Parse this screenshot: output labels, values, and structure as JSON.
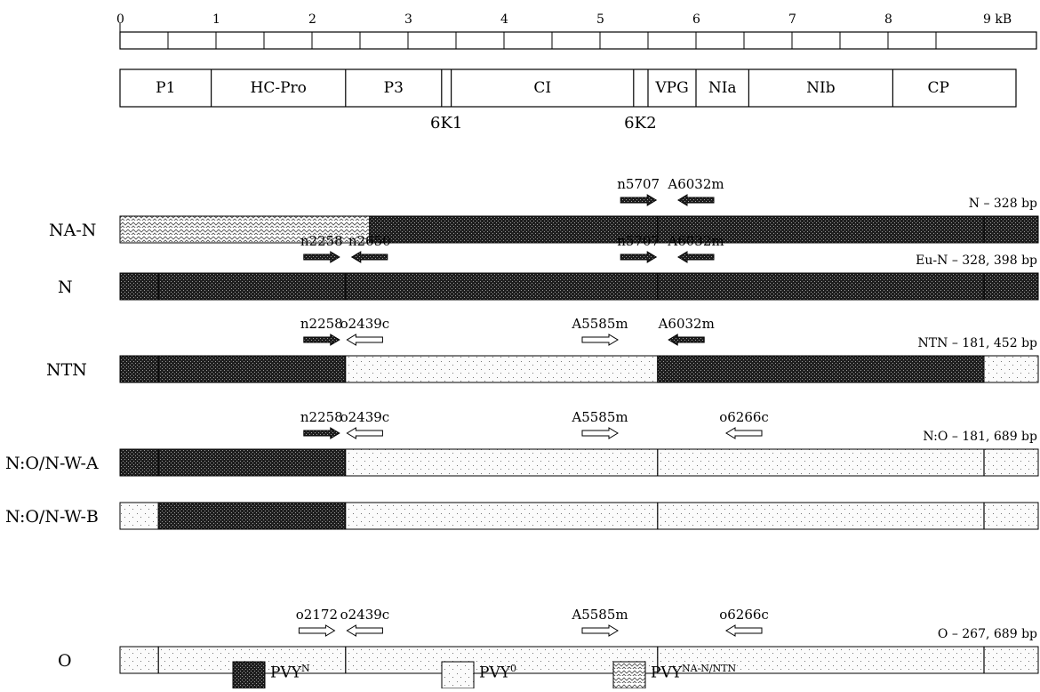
{
  "scale": {
    "ticks": [
      "0",
      "1",
      "2",
      "3",
      "4",
      "5",
      "6",
      "7",
      "8",
      "9 kB"
    ]
  },
  "genome_map": {
    "genes": [
      {
        "label": "P1",
        "start": 0,
        "end": 0.95
      },
      {
        "label": "HC-Pro",
        "start": 0.95,
        "end": 2.35
      },
      {
        "label": "P3",
        "start": 2.35,
        "end": 3.35
      },
      {
        "label": "6K1",
        "start": 3.35,
        "end": 3.45
      },
      {
        "label": "CI",
        "start": 3.45,
        "end": 5.35
      },
      {
        "label": "6K2",
        "start": 5.35,
        "end": 5.5
      },
      {
        "label": "VPG",
        "start": 5.5,
        "end": 6.0
      },
      {
        "label": "NIa",
        "start": 6.0,
        "end": 6.55
      },
      {
        "label": "NIb",
        "start": 6.55,
        "end": 8.05
      },
      {
        "label": "CP",
        "start": 8.05,
        "end": 9.0
      }
    ],
    "small_labels": [
      "6K1",
      "6K2"
    ]
  },
  "strains": [
    {
      "name": "NA-N",
      "product_label": "N – 328 bp",
      "segments": [
        {
          "type": "nantn",
          "start": 0,
          "end": 2.6
        },
        {
          "type": "N",
          "start": 2.6,
          "end": 9.5
        }
      ],
      "dividers": [
        5.6,
        9.0
      ],
      "primers": [
        {
          "name": "n5707",
          "pos": 5.4,
          "dir": "right",
          "type": "N"
        },
        {
          "name": "A6032m",
          "pos": 6.0,
          "dir": "left",
          "type": "N"
        }
      ]
    },
    {
      "name": "N",
      "product_label": "Eu-N – 328, 398 bp",
      "segments": [
        {
          "type": "N",
          "start": 0,
          "end": 9.5
        }
      ],
      "dividers": [
        0.4,
        2.35,
        5.6,
        9.0
      ],
      "primers": [
        {
          "name": "n2258",
          "pos": 2.1,
          "dir": "right",
          "type": "N"
        },
        {
          "name": "n2650",
          "pos": 2.6,
          "dir": "left",
          "type": "N"
        },
        {
          "name": "n5707",
          "pos": 5.4,
          "dir": "right",
          "type": "N"
        },
        {
          "name": "A6032m",
          "pos": 6.0,
          "dir": "left",
          "type": "N"
        }
      ]
    },
    {
      "name": "NTN",
      "product_label": "NTN – 181, 452 bp",
      "segments": [
        {
          "type": "N",
          "start": 0,
          "end": 2.35
        },
        {
          "type": "O",
          "start": 2.35,
          "end": 5.6
        },
        {
          "type": "N",
          "start": 5.6,
          "end": 9.0
        },
        {
          "type": "O",
          "start": 9.0,
          "end": 9.5
        }
      ],
      "dividers": [
        0.4
      ],
      "primers": [
        {
          "name": "n2258",
          "pos": 2.1,
          "dir": "right",
          "type": "N"
        },
        {
          "name": "o2439c",
          "pos": 2.55,
          "dir": "left",
          "type": "O"
        },
        {
          "name": "A5585m",
          "pos": 5.0,
          "dir": "right",
          "type": "O"
        },
        {
          "name": "A6032m",
          "pos": 5.9,
          "dir": "left",
          "type": "N"
        }
      ]
    },
    {
      "name": "N:O/N-W-A",
      "product_label": "N:O – 181, 689 bp",
      "segments": [
        {
          "type": "N",
          "start": 0,
          "end": 2.35
        },
        {
          "type": "O",
          "start": 2.35,
          "end": 9.5
        }
      ],
      "dividers": [
        0.4,
        5.6,
        9.0
      ],
      "primers": [
        {
          "name": "n2258",
          "pos": 2.1,
          "dir": "right",
          "type": "N"
        },
        {
          "name": "o2439c",
          "pos": 2.55,
          "dir": "left",
          "type": "O"
        },
        {
          "name": "A5585m",
          "pos": 5.0,
          "dir": "right",
          "type": "O"
        },
        {
          "name": "o6266c",
          "pos": 6.5,
          "dir": "left",
          "type": "O"
        }
      ]
    },
    {
      "name": "N:O/N-W-B",
      "product_label": "",
      "segments": [
        {
          "type": "O",
          "start": 0,
          "end": 0.4
        },
        {
          "type": "N",
          "start": 0.4,
          "end": 2.35
        },
        {
          "type": "O",
          "start": 2.35,
          "end": 9.5
        }
      ],
      "dividers": [
        5.6,
        9.0
      ],
      "primers": []
    },
    {
      "name": "O",
      "product_label": "O – 267, 689 bp",
      "segments": [
        {
          "type": "O",
          "start": 0,
          "end": 9.5
        }
      ],
      "dividers": [
        0.4,
        2.35,
        5.6,
        9.0
      ],
      "primers": [
        {
          "name": "o2172",
          "pos": 2.05,
          "dir": "right",
          "type": "O"
        },
        {
          "name": "o2439c",
          "pos": 2.55,
          "dir": "left",
          "type": "O"
        },
        {
          "name": "A5585m",
          "pos": 5.0,
          "dir": "right",
          "type": "O"
        },
        {
          "name": "o6266c",
          "pos": 6.5,
          "dir": "left",
          "type": "O"
        }
      ]
    }
  ],
  "legend": [
    {
      "type": "N",
      "label": "PVY",
      "sup": "N"
    },
    {
      "type": "O",
      "label": "PVY",
      "sup": "0"
    },
    {
      "type": "nantn",
      "label": "PVY",
      "sup": "NA-N/NTN"
    }
  ],
  "colors": {
    "N": "#2b2b2b",
    "O": "#fafafa",
    "nantn": "#ffffff",
    "stroke": "#000000"
  }
}
